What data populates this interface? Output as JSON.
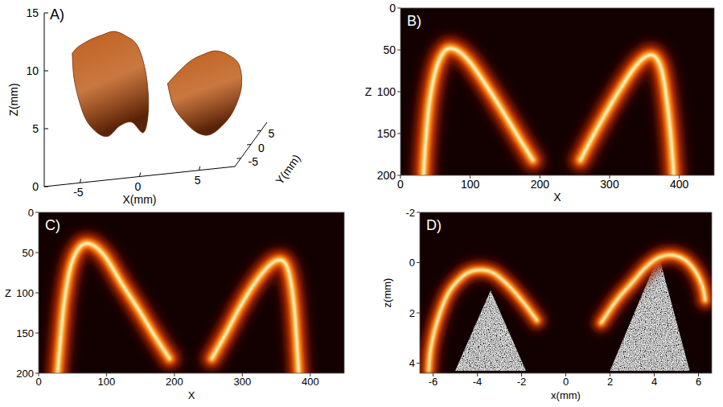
{
  "chart_data": [
    {
      "type": "surface3d",
      "panel_label": "A)",
      "xlabel": "X(mm)",
      "ylabel": "Y(mm)",
      "zlabel": "Z(mm)",
      "xlim": [
        -8,
        8
      ],
      "ylim": [
        -8,
        8
      ],
      "zlim": [
        0,
        15
      ],
      "xticks": [
        -5,
        0,
        5
      ],
      "yticks": [
        -5,
        0,
        5
      ],
      "zticks": [
        0,
        5,
        10,
        15
      ],
      "color": "#c0601f",
      "series": [
        {
          "x": [
            -7,
            -6.8,
            -6,
            -5,
            -4,
            -3,
            -2,
            -1,
            -0.6,
            -0.8,
            -1.5,
            -2.5,
            -3.5,
            -4.5,
            -5.5,
            -6.5
          ],
          "y": [
            0,
            0,
            0,
            0,
            0,
            0,
            0,
            0,
            0,
            0,
            0,
            0,
            0,
            0,
            0,
            0
          ],
          "z": [
            9.5,
            7,
            4,
            2.5,
            2,
            2.8,
            3,
            2,
            4,
            7,
            9.5,
            10.5,
            11,
            10.8,
            10.5,
            10
          ]
        },
        {
          "x": [
            1,
            1.5,
            2.5,
            3.5,
            4.5,
            5.5,
            6.5,
            7.2,
            7,
            6,
            5,
            4,
            3,
            2
          ],
          "y": [
            0,
            0,
            0,
            0,
            0,
            0,
            0,
            0,
            0,
            0,
            0,
            0,
            0,
            0
          ],
          "z": [
            6,
            4,
            2.5,
            1.5,
            1.2,
            1.8,
            3,
            5,
            7,
            8,
            8.4,
            8.2,
            7.8,
            7
          ]
        }
      ]
    },
    {
      "type": "line",
      "panel_label": "B)",
      "xlabel": "X",
      "ylabel": "Z",
      "xlim": [
        0,
        450
      ],
      "ylim": [
        200,
        0
      ],
      "xticks": [
        0,
        100,
        200,
        300,
        400
      ],
      "yticks": [
        0,
        50,
        100,
        150,
        200
      ],
      "series": [
        {
          "type": "line",
          "line_style": "glow",
          "x": [
            33,
            36,
            42,
            52,
            65,
            80,
            100,
            125,
            150,
            172,
            190
          ],
          "values": [
            200,
            160,
            110,
            70,
            50,
            50,
            65,
            95,
            128,
            158,
            182
          ]
        },
        {
          "type": "line",
          "line_style": "glow",
          "x": [
            258,
            275,
            295,
            315,
            335,
            352,
            365,
            375,
            382,
            388,
            392
          ],
          "values": [
            182,
            155,
            125,
            97,
            72,
            58,
            58,
            75,
            110,
            155,
            200
          ]
        }
      ]
    },
    {
      "type": "line",
      "panel_label": "C)",
      "xlabel": "X",
      "ylabel": "Z",
      "xlim": [
        0,
        450
      ],
      "ylim": [
        200,
        0
      ],
      "xticks": [
        0,
        100,
        200,
        300,
        400
      ],
      "yticks": [
        0,
        50,
        100,
        150,
        200
      ],
      "series": [
        {
          "type": "line",
          "line_style": "glow",
          "x": [
            28,
            32,
            38,
            48,
            62,
            78,
            98,
            122,
            148,
            172,
            193
          ],
          "values": [
            200,
            160,
            110,
            65,
            42,
            40,
            55,
            88,
            122,
            155,
            182
          ]
        },
        {
          "type": "line",
          "line_style": "glow",
          "x": [
            255,
            275,
            295,
            315,
            335,
            350,
            362,
            370,
            376,
            380,
            383
          ],
          "values": [
            182,
            152,
            120,
            92,
            70,
            60,
            62,
            80,
            115,
            160,
            200
          ]
        }
      ]
    },
    {
      "type": "line",
      "panel_label": "D)",
      "xlabel": "x(mm)",
      "ylabel": "z(mm)",
      "xlim": [
        -6.6,
        6.6
      ],
      "ylim": [
        4.4,
        -2
      ],
      "xticks": [
        -6,
        -4,
        -2,
        0,
        2,
        4,
        6
      ],
      "yticks": [
        -2,
        0,
        2,
        4
      ],
      "series": [
        {
          "type": "speckle",
          "x": [
            -3.4,
            -1.8,
            -5.0
          ],
          "values": [
            1.1,
            4.3,
            4.3
          ]
        },
        {
          "type": "speckle",
          "x": [
            4.2,
            5.6,
            2.0
          ],
          "values": [
            -0.3,
            4.3,
            4.3
          ]
        },
        {
          "type": "line",
          "line_style": "glow",
          "x": [
            -6.2,
            -6.1,
            -5.8,
            -5.3,
            -4.6,
            -4.0,
            -3.3,
            -2.6,
            -1.9,
            -1.3
          ],
          "values": [
            4.3,
            3.4,
            2.3,
            1.2,
            0.5,
            0.3,
            0.4,
            0.9,
            1.6,
            2.3
          ]
        },
        {
          "type": "line",
          "line_style": "glow",
          "x": [
            1.6,
            2.3,
            3.0,
            3.6,
            4.2,
            4.8,
            5.4,
            5.9,
            6.2,
            6.3
          ],
          "values": [
            2.4,
            1.5,
            0.8,
            0.2,
            -0.2,
            -0.3,
            -0.1,
            0.4,
            1.0,
            1.5
          ]
        }
      ]
    }
  ]
}
